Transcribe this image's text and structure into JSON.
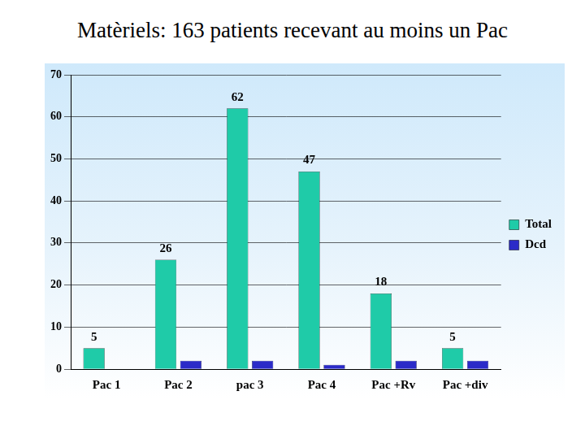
{
  "chart_data": {
    "type": "bar",
    "title": "Matèriels: 163 patients recevant au moins un Pac",
    "categories": [
      "Pac 1",
      "Pac 2",
      "pac 3",
      "Pac 4",
      "Pac +Rv",
      "Pac +div"
    ],
    "series": [
      {
        "name": "Total",
        "color": "#1fcba8",
        "values": [
          5,
          26,
          62,
          47,
          18,
          5
        ],
        "data_labels": true
      },
      {
        "name": "Dcd",
        "color": "#2b2bc8",
        "values": [
          0,
          2,
          2,
          1,
          2,
          2
        ]
      }
    ],
    "ylim": [
      0,
      70
    ],
    "yticks": [
      0,
      10,
      20,
      30,
      40,
      50,
      60,
      70
    ],
    "grid": true,
    "legend": "right"
  }
}
